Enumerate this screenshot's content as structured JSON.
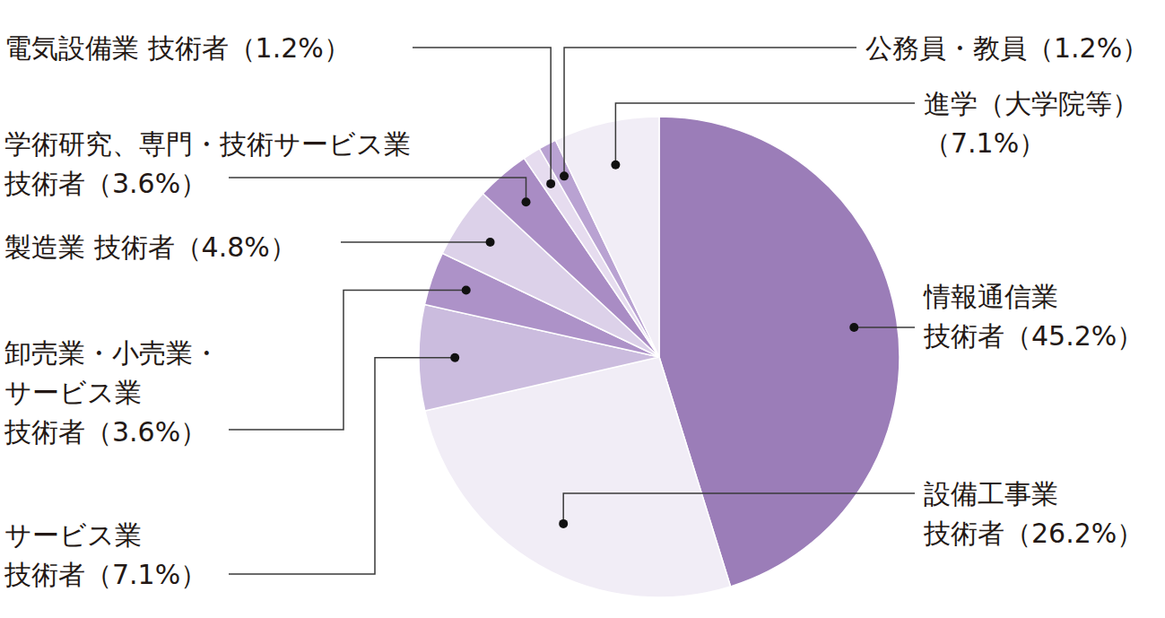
{
  "chart_data": {
    "type": "pie",
    "categories": [
      "情報通信業\n技術者",
      "設備工事業\n技術者",
      "サービス業\n技術者",
      "卸売業・小売業・\nサービス業\n技術者",
      "製造業 技術者",
      "学術研究、専門・技術サービス業\n技術者",
      "電気設備業 技術者",
      "公務員・教員",
      "進学（大学院等）"
    ],
    "values": [
      45.2,
      26.2,
      7.1,
      3.6,
      4.8,
      3.6,
      1.2,
      1.2,
      7.1
    ],
    "value_labels": [
      "（45.2%）",
      "（26.2%）",
      "（7.1%）",
      "（3.6%）",
      "（4.8%）",
      "（3.6%）",
      "（1.2%）",
      "（1.2%）",
      "（7.1%）"
    ],
    "colors": [
      "#9b7db8",
      "#f1edf6",
      "#cbbcde",
      "#ad92c8",
      "#dcd1e9",
      "#a98cc4",
      "#e6dcef",
      "#b9a2d2",
      "#f1edf6"
    ],
    "data_labels": true
  }
}
